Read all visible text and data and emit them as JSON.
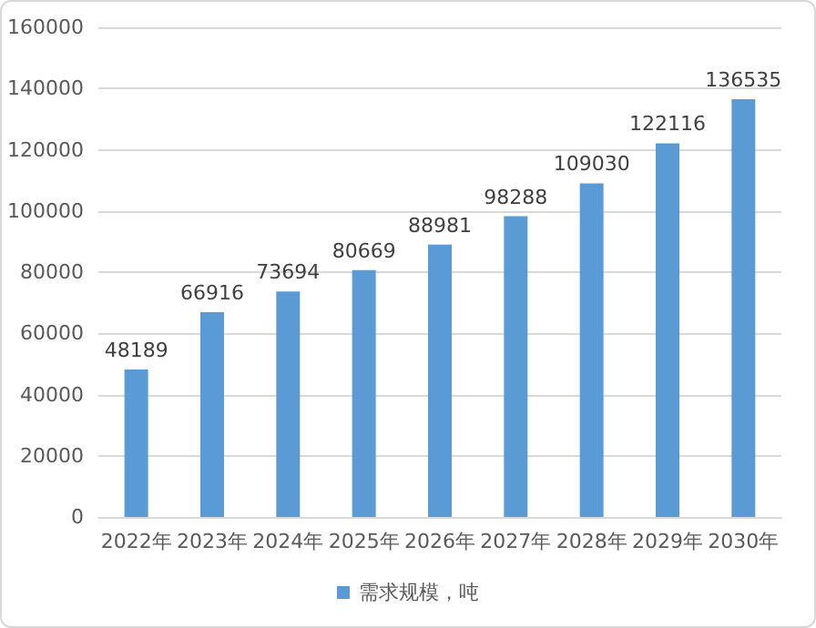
{
  "chart_data": {
    "type": "bar",
    "categories": [
      "2022年",
      "2023年",
      "2024年",
      "2025年",
      "2026年",
      "2027年",
      "2028年",
      "2029年",
      "2030年"
    ],
    "series": [
      {
        "name": "需求规模，吨",
        "color": "#5b9bd5",
        "values": [
          48189,
          66916,
          73694,
          80669,
          88981,
          98288,
          109030,
          122116,
          136535
        ]
      }
    ],
    "ylim": [
      0,
      160000
    ],
    "yticks": [
      0,
      20000,
      40000,
      60000,
      80000,
      100000,
      120000,
      140000,
      160000
    ],
    "grid": "y",
    "legend": "bottom",
    "data_labels": true
  }
}
